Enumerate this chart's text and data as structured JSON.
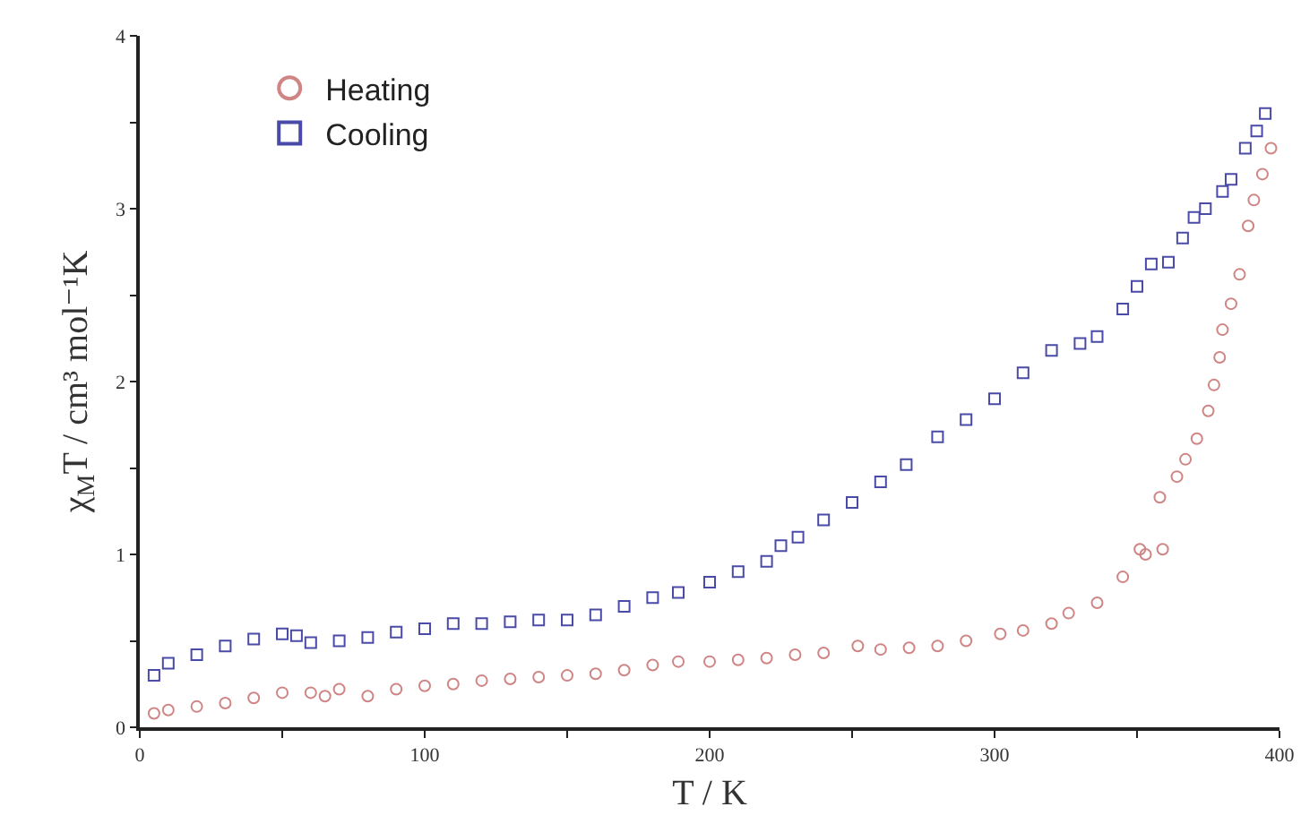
{
  "chart_data": {
    "type": "scatter",
    "xlabel": "T / K",
    "ylabel": "χ$_{M}$T / cm³ mol⁻¹K",
    "xlim": [
      0,
      400
    ],
    "ylim": [
      0,
      4
    ],
    "xticks": [
      0,
      {
        "value": 50,
        "label": null
      },
      100,
      {
        "value": 150,
        "label": null
      },
      200,
      {
        "value": 250,
        "label": null
      },
      300,
      {
        "value": 350,
        "label": null
      },
      400
    ],
    "yticks": [
      0,
      {
        "value": 0.5,
        "label": null
      },
      1,
      {
        "value": 1.5,
        "label": null
      },
      2,
      {
        "value": 2.5,
        "label": null
      },
      3,
      {
        "value": 3.5,
        "label": null
      },
      4
    ],
    "grid": false,
    "legend": "top left",
    "series": [
      {
        "name": "Heating",
        "color": "#d08585",
        "marker": "circle",
        "x": [
          5,
          10,
          20,
          30,
          40,
          50,
          60,
          65,
          70,
          80,
          90,
          100,
          110,
          120,
          130,
          140,
          150,
          160,
          170,
          180,
          189,
          200,
          210,
          220,
          230,
          240,
          252,
          260,
          270,
          280,
          290,
          302,
          310,
          320,
          326,
          336,
          345,
          351,
          353,
          359,
          358,
          364,
          367,
          371,
          375,
          377,
          379,
          380,
          383,
          386,
          389,
          391,
          394,
          397
        ],
        "values": [
          0.08,
          0.1,
          0.12,
          0.14,
          0.17,
          0.2,
          0.2,
          0.18,
          0.22,
          0.18,
          0.22,
          0.24,
          0.25,
          0.27,
          0.28,
          0.29,
          0.3,
          0.31,
          0.33,
          0.36,
          0.38,
          0.38,
          0.39,
          0.4,
          0.42,
          0.43,
          0.47,
          0.45,
          0.46,
          0.47,
          0.5,
          0.54,
          0.56,
          0.6,
          0.66,
          0.72,
          0.87,
          1.03,
          1.0,
          1.03,
          1.33,
          1.45,
          1.55,
          1.67,
          1.83,
          1.98,
          2.14,
          2.3,
          2.45,
          2.62,
          2.9,
          3.05,
          3.2,
          3.35
        ]
      },
      {
        "name": "Cooling",
        "color": "#4a4aa8",
        "marker": "square",
        "x": [
          5,
          10,
          20,
          30,
          40,
          50,
          55,
          60,
          70,
          80,
          90,
          100,
          110,
          120,
          130,
          140,
          150,
          160,
          170,
          180,
          189,
          200,
          210,
          220,
          225,
          231,
          240,
          250,
          260,
          269,
          280,
          290,
          300,
          310,
          320,
          330,
          336,
          345,
          350,
          355,
          361,
          366,
          370,
          374,
          380,
          383,
          388,
          392,
          395
        ],
        "values": [
          0.3,
          0.37,
          0.42,
          0.47,
          0.51,
          0.54,
          0.53,
          0.49,
          0.5,
          0.52,
          0.55,
          0.57,
          0.6,
          0.6,
          0.61,
          0.62,
          0.62,
          0.65,
          0.7,
          0.75,
          0.78,
          0.84,
          0.9,
          0.96,
          1.05,
          1.1,
          1.2,
          1.3,
          1.42,
          1.52,
          1.68,
          1.78,
          1.9,
          2.05,
          2.18,
          2.22,
          2.26,
          2.42,
          2.55,
          2.68,
          2.69,
          2.83,
          2.95,
          3.0,
          3.1,
          3.17,
          3.35,
          3.45,
          3.55
        ]
      }
    ]
  }
}
